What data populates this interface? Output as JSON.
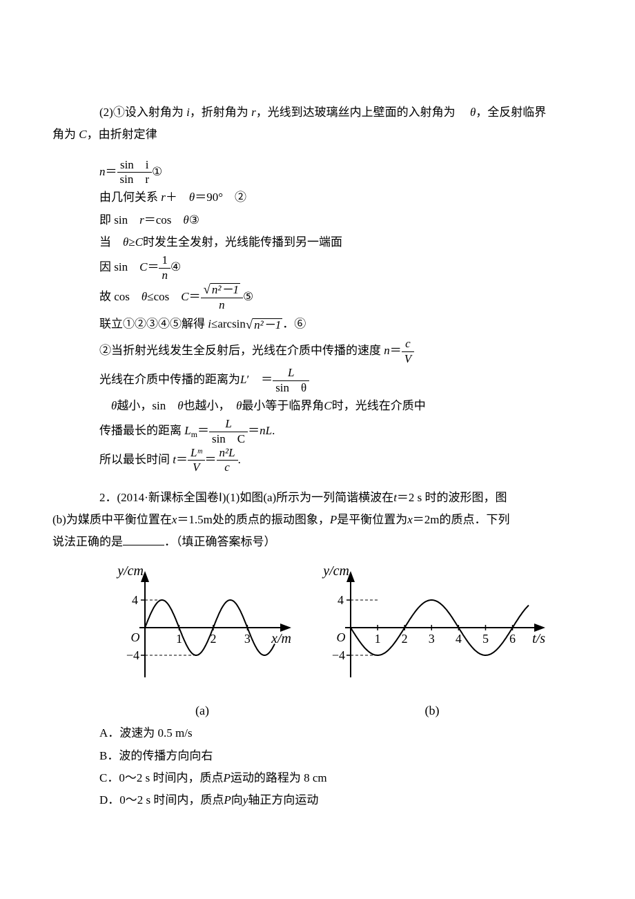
{
  "p1": {
    "intro_a": "(2)①设入射角为",
    "var_i": "i",
    "intro_b": "，折射角为",
    "var_r": "r",
    "intro_c": "，光线到达玻璃丝内上壁面的入射角为　",
    "var_theta": "θ",
    "intro_d": "，全反射临界",
    "intro_e": "角为",
    "var_C": "C",
    "intro_f": "，由折射定律"
  },
  "eq1": {
    "lhs": "n",
    "eq": "＝",
    "num": "sin　i",
    "den": "sin　r",
    "tag": "①"
  },
  "line2": {
    "a": "由几何关系",
    "b": "r",
    "c": "＋　",
    "d": "θ",
    "e": "＝90°　②"
  },
  "line3": {
    "a": "即 sin　",
    "b": "r",
    "c": "＝cos　",
    "d": "θ",
    "e": "③"
  },
  "line4": {
    "a": "当　",
    "b": "θ",
    "c": "≥",
    "d": "C",
    "e": "时发生全发射，光线能传播到另一端面"
  },
  "eq4": {
    "a": "因 sin　",
    "b": "C",
    "c": "＝",
    "num": "1",
    "den": "n",
    "tag": "④"
  },
  "eq5": {
    "a": "故 cos　",
    "b": "θ",
    "c": "≤cos　",
    "d": "C",
    "e": "＝",
    "numsq": "n²－1",
    "den": "n",
    "tag": "⑤"
  },
  "line6": {
    "a": "联立①②③④⑤解得 ",
    "b": "i",
    "c": "≤arcsin",
    "sq": "n²－1",
    "d": "．⑥"
  },
  "eq7": {
    "a": "②当折射光线发生全反射后，光线在介质中传播的速度 ",
    "b": "n",
    "c": "＝",
    "num": "c",
    "den": "V"
  },
  "eq8": {
    "a": "光线在介质中传播的距离为",
    "b": "L",
    "prime": "′　＝",
    "num": "L",
    "den": "sin　θ"
  },
  "line9": {
    "a": "　θ",
    "b": "越小，sin　",
    "c": "θ",
    "d": "也越小，　",
    "e": "θ",
    "f": "最小等于临界角",
    "g": "C",
    "h": "时，光线在介质中"
  },
  "eq10": {
    "a": "传播最长的距离 ",
    "b": "L",
    "sub": "m",
    "c": "＝",
    "num1": "L",
    "den1": "sin　C",
    "d": "＝",
    "e": "nL",
    "f": "."
  },
  "eq11": {
    "a": "所以最长时间 ",
    "b": "t",
    "c": "＝",
    "num1": "Lᵐ",
    "den1": "V",
    "d": "＝",
    "num2": "n²L",
    "den2": "c",
    "e": "."
  },
  "q2": {
    "a": "2．(2014·新课标全国卷Ⅰ)(1)如图(a)所示为一列简谐横波在",
    "t": "t",
    "b": "＝2 s 时的波形图，图",
    "c": "(b)为媒质中平衡位置在",
    "x": "x",
    "d": "＝1.5m处的质点的振动图象，",
    "P": "P",
    "e": "是平衡位置为",
    "x2": "x",
    "f": "＝2m的质点．下列",
    "g": "说法正确的是",
    "h": "．（填正确答案标号）"
  },
  "graph_a": {
    "ylabel": "y/cm",
    "xlabel": "x/m",
    "ytick_hi": "4",
    "ytick_lo": "−4",
    "xticks": [
      "1",
      "2",
      "3"
    ],
    "origin": "O",
    "wavelength": 2.0,
    "amplitude": 4,
    "phase": 0,
    "x_range": [
      0,
      3.8
    ],
    "caption": "(a)",
    "line_color": "#000000",
    "line_width": 2,
    "axis_color": "#000000",
    "tick_fontsize": 18,
    "label_fontsize": 20,
    "background": "#ffffff"
  },
  "graph_b": {
    "ylabel": "y/cm",
    "xlabel": "t/s",
    "ytick_hi": "4",
    "ytick_lo": "−4",
    "xticks": [
      "1",
      "2",
      "3",
      "4",
      "5",
      "6"
    ],
    "origin": "O",
    "wavelength": 4.0,
    "amplitude": 4,
    "phase": 3.14159265,
    "x_range": [
      0,
      6.6
    ],
    "caption": "(b)",
    "line_color": "#000000",
    "line_width": 2,
    "axis_color": "#000000",
    "tick_fontsize": 18,
    "label_fontsize": 20,
    "background": "#ffffff"
  },
  "options": {
    "A": "A．波速为 0.5 m/s",
    "B": "B．波的传播方向向右",
    "C_a": "C．0～2 s 时间内，质点",
    "C_P": "P",
    "C_b": "运动的路程为 8 cm",
    "D_a": "D．0～2 s 时间内，质点",
    "D_P": "P",
    "D_b": "向",
    "D_y": "y",
    "D_c": "轴正方向运动"
  }
}
